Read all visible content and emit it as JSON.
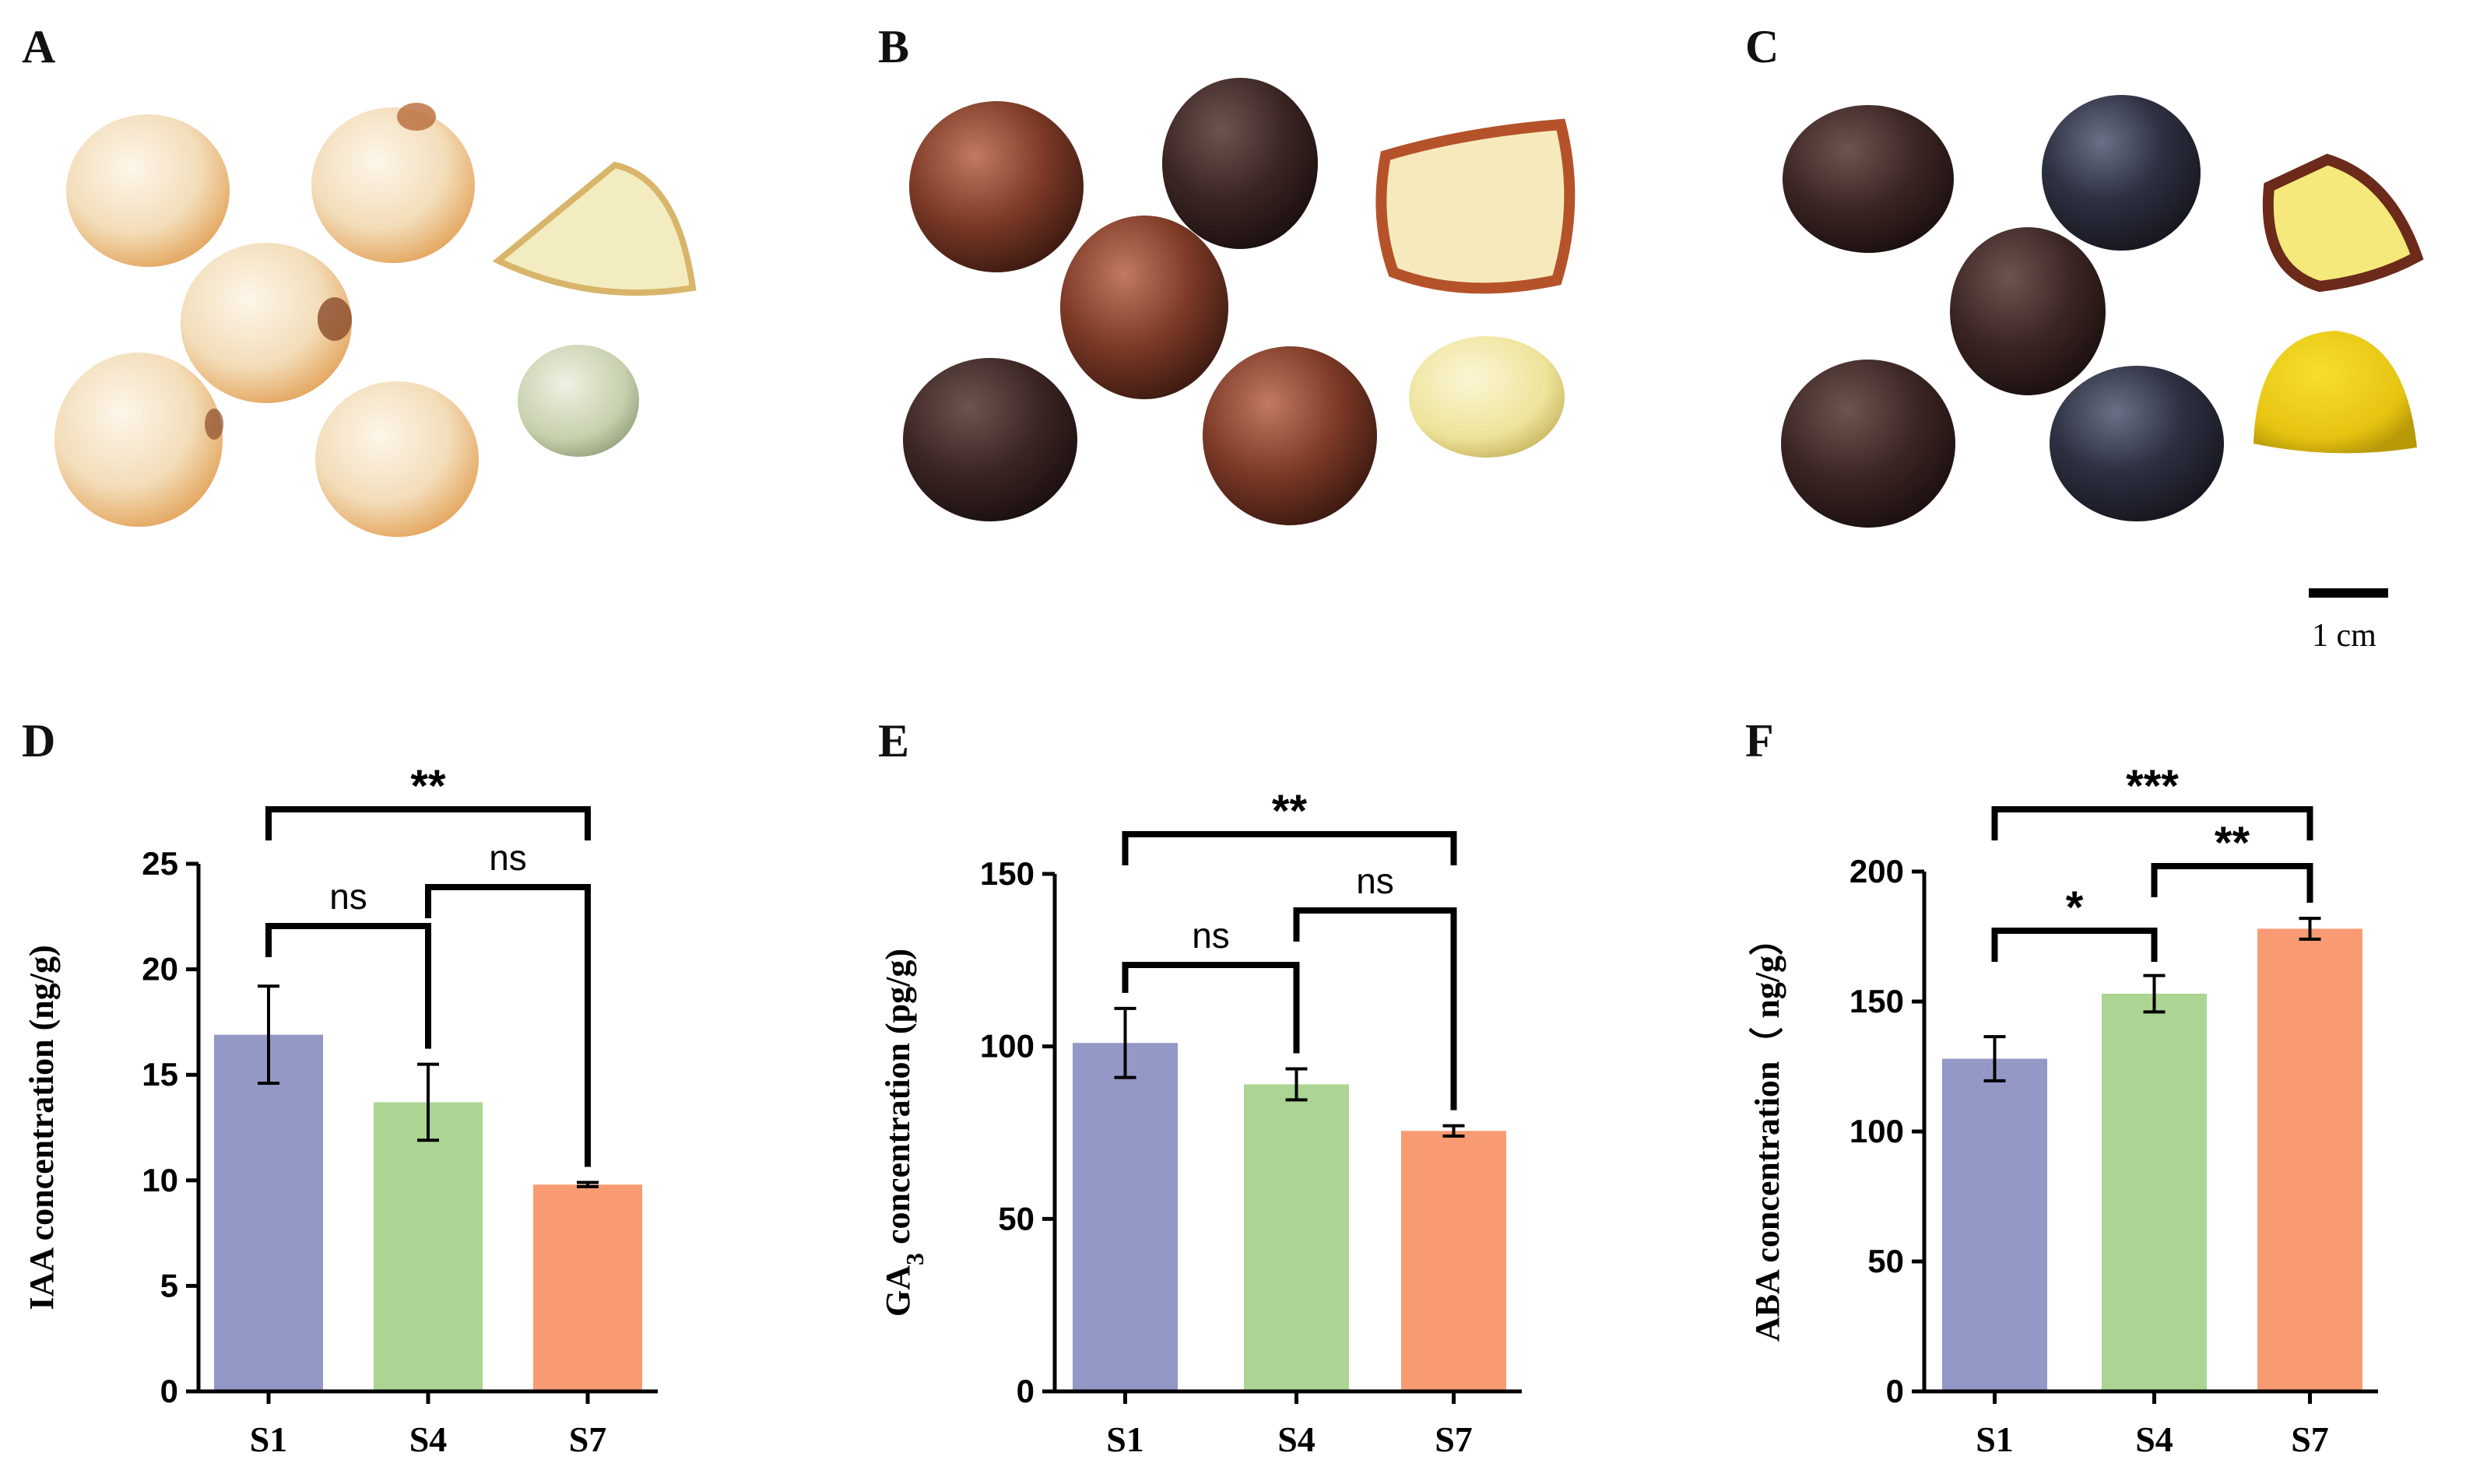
{
  "panel_labels": [
    "A",
    "B",
    "C",
    "D",
    "E",
    "F"
  ],
  "scale_bar": {
    "label": "1 cm"
  },
  "colors": {
    "S1": "#9398c6",
    "S4": "#acd593",
    "S7": "#f99b72",
    "axis": "#000000"
  },
  "chart_data": [
    {
      "type": "bar",
      "panel": "D",
      "categories": [
        "S1",
        "S4",
        "S7"
      ],
      "values": [
        16.9,
        13.7,
        9.8
      ],
      "errors": [
        2.3,
        1.8,
        0.1
      ],
      "ylabel": "IAA concentration (ng/g)",
      "ylim": [
        0,
        25
      ],
      "yticks": [
        0,
        5,
        10,
        15,
        20,
        25
      ],
      "significance": [
        {
          "from": "S1",
          "to": "S4",
          "label": "ns"
        },
        {
          "from": "S4",
          "to": "S7",
          "label": "ns"
        },
        {
          "from": "S1",
          "to": "S7",
          "label": "**"
        }
      ]
    },
    {
      "type": "bar",
      "panel": "E",
      "categories": [
        "S1",
        "S4",
        "S7"
      ],
      "values": [
        101,
        89,
        75.5
      ],
      "errors": [
        10,
        4.5,
        1.5
      ],
      "ylabel": "GA3 concentration (pg/g)",
      "ylabel_main": "GA",
      "ylabel_sub": "3",
      "ylabel_rest": " concentration (pg/g)",
      "ylim": [
        0,
        150
      ],
      "yticks": [
        0,
        50,
        100,
        150
      ],
      "significance": [
        {
          "from": "S1",
          "to": "S4",
          "label": "ns"
        },
        {
          "from": "S4",
          "to": "S7",
          "label": "ns"
        },
        {
          "from": "S1",
          "to": "S7",
          "label": "**"
        }
      ]
    },
    {
      "type": "bar",
      "panel": "F",
      "categories": [
        "S1",
        "S4",
        "S7"
      ],
      "values": [
        128,
        153,
        178
      ],
      "errors": [
        8.5,
        7,
        4
      ],
      "ylabel": "ABA concentration（ ng/g）",
      "ylim": [
        0,
        200
      ],
      "yticks": [
        0,
        50,
        100,
        150,
        200
      ],
      "significance": [
        {
          "from": "S1",
          "to": "S4",
          "label": "*"
        },
        {
          "from": "S4",
          "to": "S7",
          "label": "**"
        },
        {
          "from": "S1",
          "to": "S7",
          "label": "***"
        }
      ]
    }
  ]
}
